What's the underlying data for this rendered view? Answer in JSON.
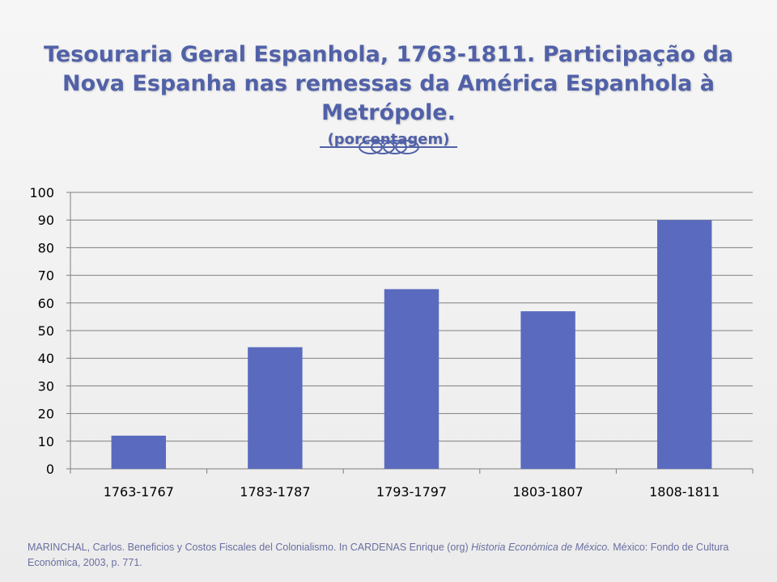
{
  "title": {
    "main": "Tesouraria Geral Espanhola, 1763-1811. Participação da Nova Espanha nas remessas da América Espanhola à Metrópole.",
    "sub": "(porcentagem)"
  },
  "source": {
    "part1": "MARINCHAL, Carlos. Beneficios y Costos Fiscales del Colonialismo. In CARDENAS Enrique (org)",
    "italic": "Historia Económica de México.",
    "part2": "México: Fondo de Cultura Económica, 2003, p. 771."
  },
  "colors": {
    "title": "#5161a8",
    "bar": "#5a6bbf",
    "grid": "#7f7f7f",
    "text": "#000000"
  },
  "chart_data": {
    "type": "bar",
    "categories": [
      "1763-1767",
      "1783-1787",
      "1793-1797",
      "1803-1807",
      "1808-1811"
    ],
    "values": [
      12,
      44,
      65,
      57,
      90
    ],
    "yticks": [
      "0",
      "10",
      "20",
      "30",
      "40",
      "50",
      "60",
      "70",
      "80",
      "90",
      "100"
    ],
    "ylim": [
      0,
      100
    ],
    "grid": true,
    "legend": "none"
  }
}
